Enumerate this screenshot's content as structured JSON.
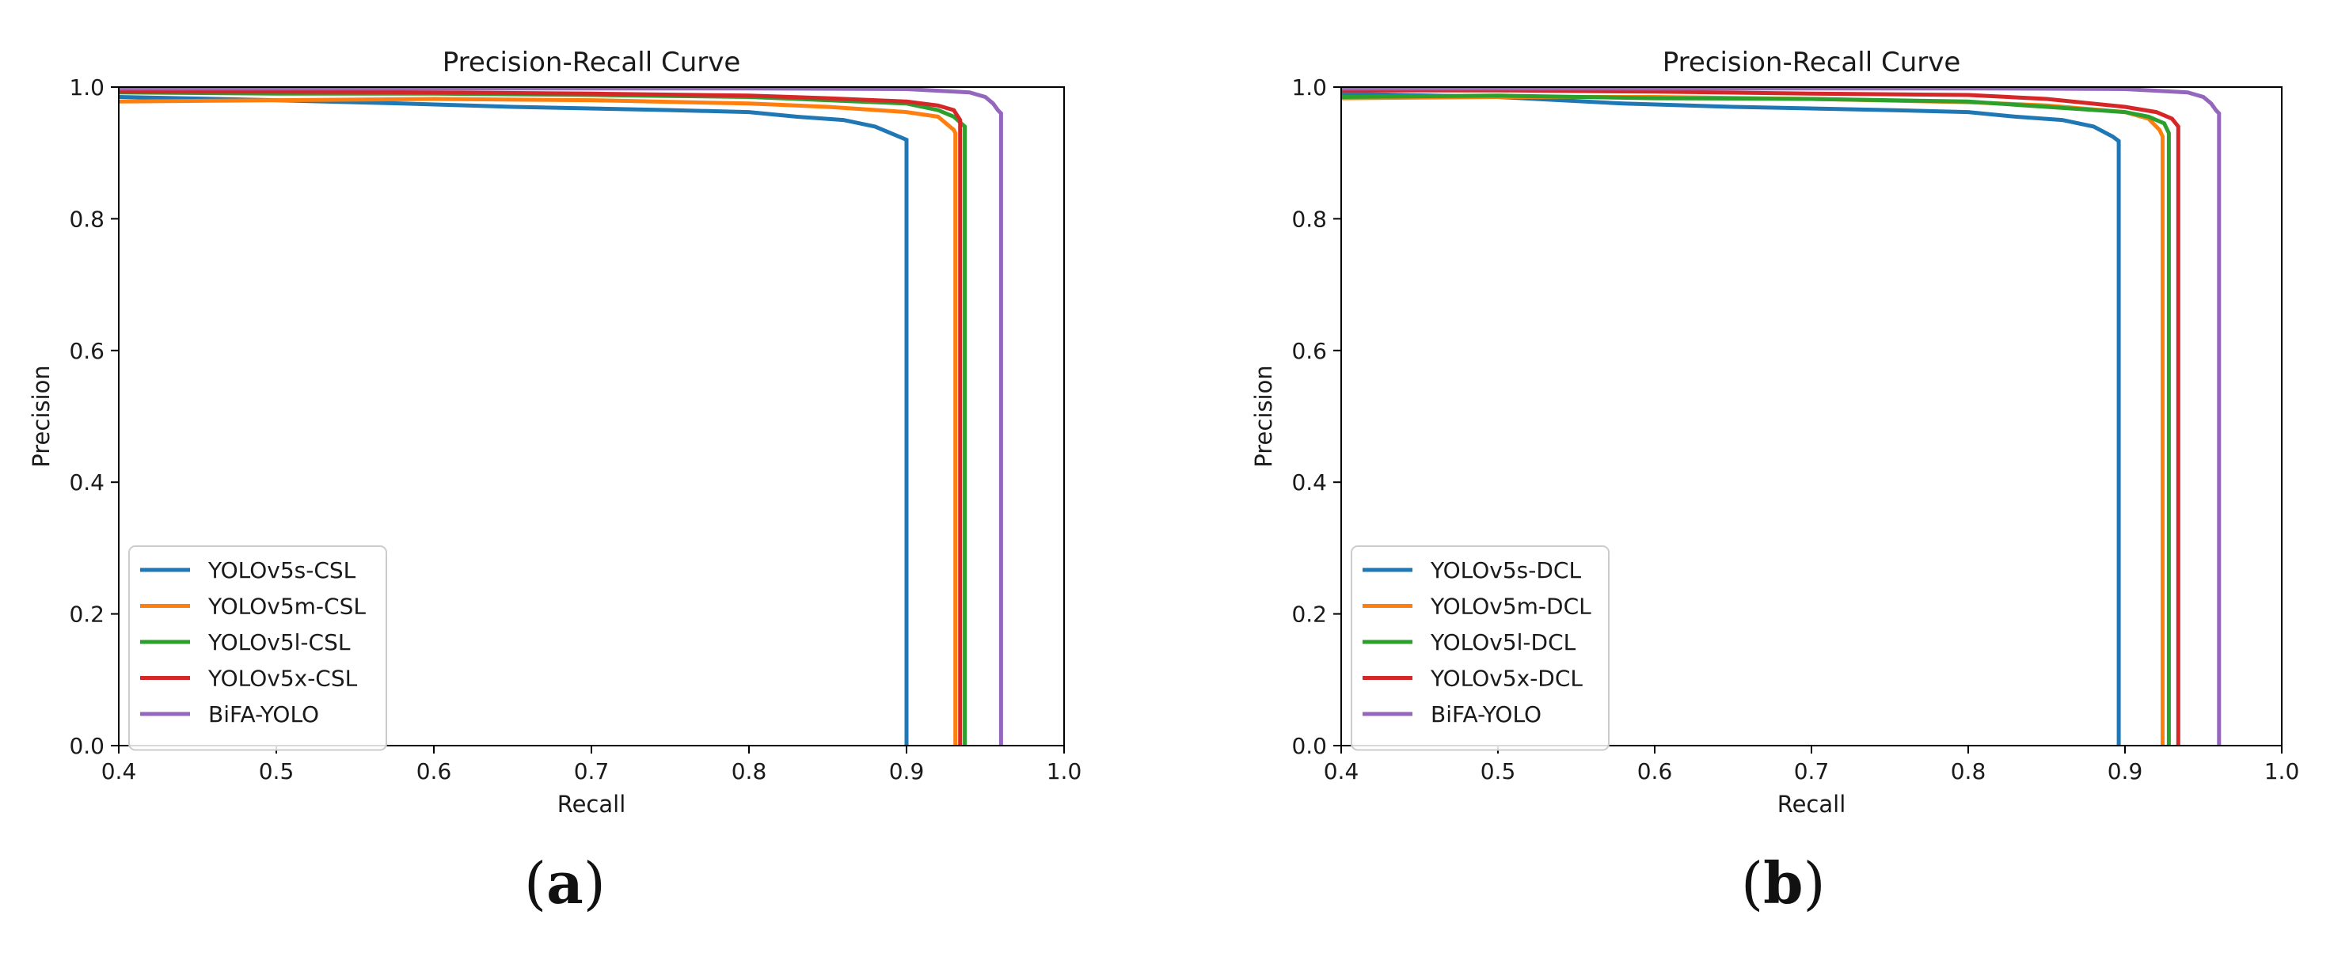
{
  "chart_data": [
    {
      "type": "line",
      "panel_label": "a",
      "title": "Precision-Recall Curve",
      "xlabel": "Recall",
      "ylabel": "Precision",
      "xlim": [
        0.4,
        1.0
      ],
      "ylim": [
        0.0,
        1.0
      ],
      "xticks": [
        "0.4",
        "0.5",
        "0.6",
        "0.7",
        "0.8",
        "0.9",
        "1.0"
      ],
      "yticks": [
        "0.0",
        "0.2",
        "0.4",
        "0.6",
        "0.8",
        "1.0"
      ],
      "grid": false,
      "legend_position": "lower-left",
      "series": [
        {
          "name": "YOLOv5s-CSL",
          "color": "#1f77b4",
          "x": [
            0.4,
            0.5,
            0.58,
            0.65,
            0.75,
            0.8,
            0.83,
            0.86,
            0.88,
            0.895,
            0.9,
            0.9
          ],
          "y": [
            0.985,
            0.98,
            0.975,
            0.97,
            0.965,
            0.962,
            0.955,
            0.95,
            0.94,
            0.925,
            0.92,
            0.0
          ]
        },
        {
          "name": "YOLOv5m-CSL",
          "color": "#ff7f0e",
          "x": [
            0.4,
            0.5,
            0.6,
            0.7,
            0.8,
            0.85,
            0.9,
            0.92,
            0.93,
            0.931,
            0.931
          ],
          "y": [
            0.978,
            0.98,
            0.982,
            0.98,
            0.975,
            0.97,
            0.962,
            0.955,
            0.935,
            0.93,
            0.0
          ]
        },
        {
          "name": "YOLOv5l-CSL",
          "color": "#2ca02c",
          "x": [
            0.4,
            0.5,
            0.6,
            0.7,
            0.8,
            0.85,
            0.9,
            0.92,
            0.93,
            0.937,
            0.937
          ],
          "y": [
            0.992,
            0.99,
            0.99,
            0.988,
            0.985,
            0.98,
            0.975,
            0.965,
            0.955,
            0.94,
            0.0
          ]
        },
        {
          "name": "YOLOv5x-CSL",
          "color": "#d62728",
          "x": [
            0.4,
            0.5,
            0.6,
            0.7,
            0.8,
            0.85,
            0.9,
            0.92,
            0.93,
            0.934,
            0.934
          ],
          "y": [
            0.993,
            0.993,
            0.992,
            0.99,
            0.987,
            0.983,
            0.978,
            0.972,
            0.965,
            0.95,
            0.0
          ]
        },
        {
          "name": "BiFA-YOLO",
          "color": "#9467bd",
          "x": [
            0.4,
            0.6,
            0.8,
            0.9,
            0.94,
            0.95,
            0.955,
            0.958,
            0.96,
            0.96
          ],
          "y": [
            0.998,
            0.998,
            0.998,
            0.997,
            0.992,
            0.985,
            0.975,
            0.965,
            0.96,
            0.0
          ]
        }
      ]
    },
    {
      "type": "line",
      "panel_label": "b",
      "title": "Precision-Recall Curve",
      "xlabel": "Recall",
      "ylabel": "Precision",
      "xlim": [
        0.4,
        1.0
      ],
      "ylim": [
        0.0,
        1.0
      ],
      "xticks": [
        "0.4",
        "0.5",
        "0.6",
        "0.7",
        "0.8",
        "0.9",
        "1.0"
      ],
      "yticks": [
        "0.0",
        "0.2",
        "0.4",
        "0.6",
        "0.8",
        "1.0"
      ],
      "grid": false,
      "legend_position": "lower-left",
      "series": [
        {
          "name": "YOLOv5s-DCL",
          "color": "#1f77b4",
          "x": [
            0.4,
            0.5,
            0.58,
            0.65,
            0.75,
            0.8,
            0.83,
            0.86,
            0.88,
            0.892,
            0.896,
            0.896
          ],
          "y": [
            0.99,
            0.985,
            0.975,
            0.97,
            0.965,
            0.962,
            0.955,
            0.95,
            0.94,
            0.925,
            0.918,
            0.0
          ]
        },
        {
          "name": "YOLOv5m-DCL",
          "color": "#ff7f0e",
          "x": [
            0.4,
            0.5,
            0.6,
            0.7,
            0.8,
            0.85,
            0.9,
            0.915,
            0.922,
            0.924,
            0.924
          ],
          "y": [
            0.983,
            0.985,
            0.985,
            0.982,
            0.977,
            0.972,
            0.962,
            0.952,
            0.935,
            0.925,
            0.0
          ]
        },
        {
          "name": "YOLOv5l-DCL",
          "color": "#2ca02c",
          "x": [
            0.4,
            0.5,
            0.6,
            0.7,
            0.8,
            0.85,
            0.9,
            0.915,
            0.925,
            0.928,
            0.928
          ],
          "y": [
            0.985,
            0.987,
            0.983,
            0.982,
            0.978,
            0.97,
            0.962,
            0.955,
            0.945,
            0.93,
            0.0
          ]
        },
        {
          "name": "YOLOv5x-DCL",
          "color": "#d62728",
          "x": [
            0.4,
            0.5,
            0.6,
            0.7,
            0.8,
            0.85,
            0.9,
            0.92,
            0.93,
            0.934,
            0.934
          ],
          "y": [
            0.995,
            0.995,
            0.993,
            0.99,
            0.988,
            0.982,
            0.97,
            0.962,
            0.952,
            0.94,
            0.0
          ]
        },
        {
          "name": "BiFA-YOLO",
          "color": "#9467bd",
          "x": [
            0.4,
            0.6,
            0.8,
            0.9,
            0.94,
            0.95,
            0.955,
            0.958,
            0.96,
            0.96
          ],
          "y": [
            0.998,
            0.998,
            0.998,
            0.997,
            0.992,
            0.985,
            0.975,
            0.965,
            0.96,
            0.0
          ]
        }
      ]
    }
  ]
}
